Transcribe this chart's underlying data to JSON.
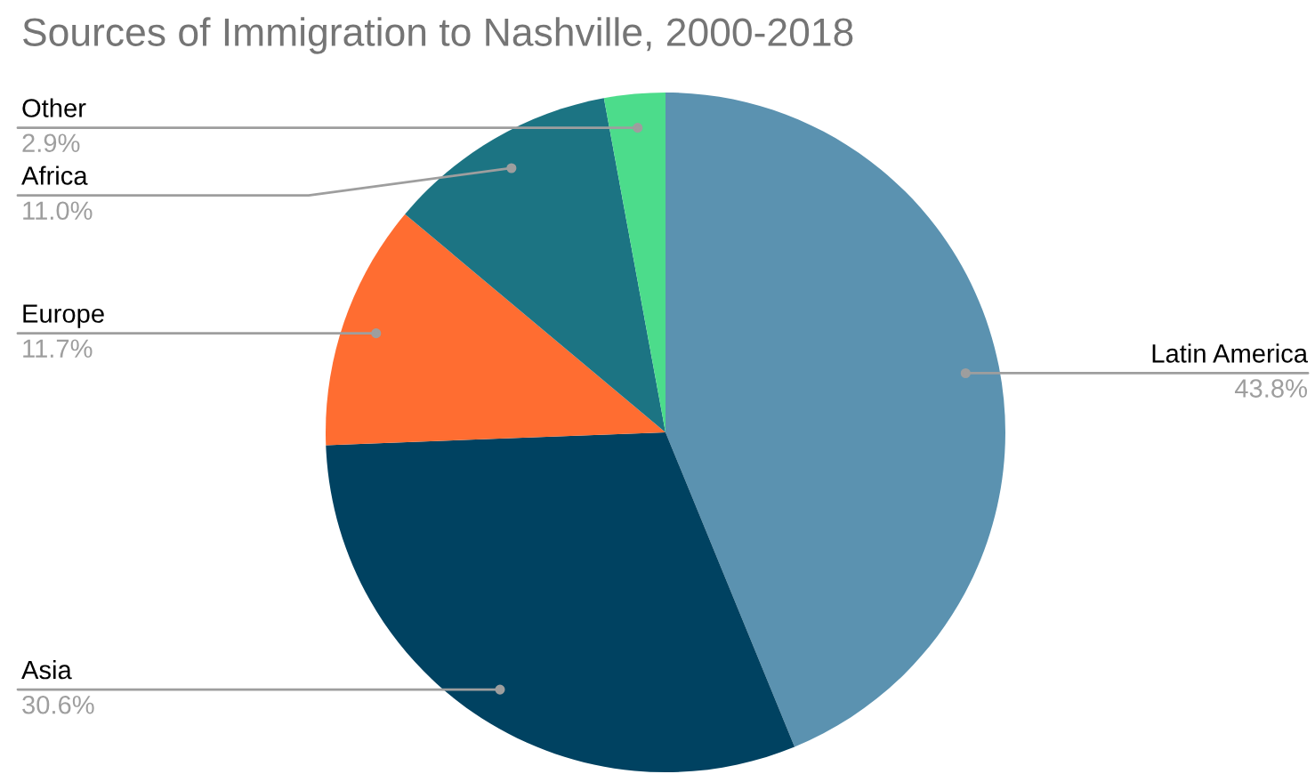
{
  "chart_data": {
    "type": "pie",
    "title": "Sources of Immigration to Nashville, 2000-2018",
    "categories": [
      "Latin America",
      "Asia",
      "Europe",
      "Africa",
      "Other"
    ],
    "values": [
      43.8,
      30.6,
      11.7,
      11.0,
      2.9
    ],
    "value_labels": [
      "43.8%",
      "30.6%",
      "11.7%",
      "11.0%",
      "2.9%"
    ],
    "colors": [
      "#5b92b0",
      "#004261",
      "#ff6d31",
      "#1c7483",
      "#4cdc8b"
    ],
    "legend": false
  }
}
